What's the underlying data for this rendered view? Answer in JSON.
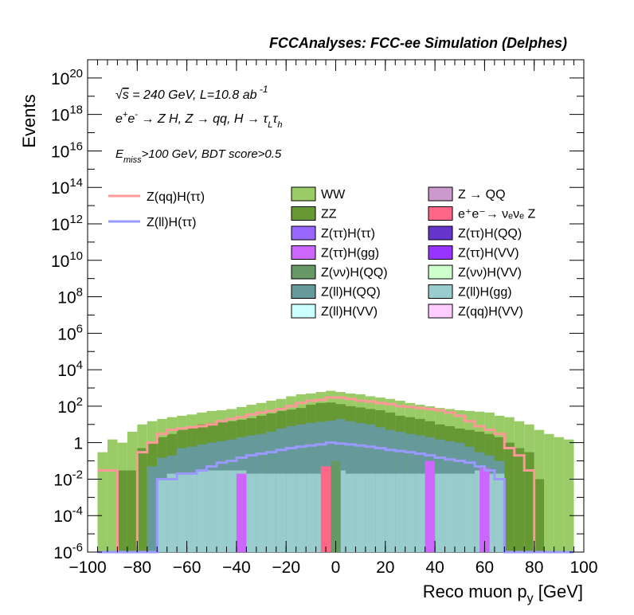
{
  "header": "FCCAnalyses: FCC-ee Simulation (Delphes)",
  "annotations": {
    "line1": "√s = 240 GeV, L=10.8 ab ⁻¹",
    "line2": "e⁺e⁻ → Z H, Z → qq, H → τ_L τ_h",
    "line3": "E_miss>100 GeV, BDT score>0.5"
  },
  "colors": {
    "WW": "#99cc66",
    "ZZ": "#669933",
    "Z_QQ": "#cc99cc",
    "eevvZ": "#ff6688",
    "tautau_tautau": "#9966ff",
    "tautau_QQ": "#6633cc",
    "tautau_gg": "#cc66ff",
    "tautau_VV": "#9933ff",
    "vv_QQ": "#669966",
    "vv_VV": "#ccffcc",
    "ll_QQ": "#669999",
    "ll_gg": "#99cccc",
    "ll_VV": "#ccffff",
    "qq_VV": "#ffccff",
    "sig_qq": "#ff9999",
    "sig_ll": "#9999ff"
  },
  "chart_data": {
    "type": "area",
    "title": "FCCAnalyses: FCC-ee Simulation (Delphes)",
    "xlabel": "Reco muon p_y [GeV]",
    "ylabel": "Events",
    "xlim": [
      -100,
      100
    ],
    "ylim": [
      1e-06,
      1e+21
    ],
    "yscale": "log",
    "stacked": true,
    "bin_width": 4,
    "x_ticks": [
      "−100",
      "−80",
      "−60",
      "−40",
      "−20",
      "0",
      "20",
      "40",
      "60",
      "80",
      "100"
    ],
    "y_ticks": [
      {
        "base": "1",
        "exp": ""
      },
      {
        "base": "10",
        "exp": "2"
      },
      {
        "base": "10",
        "exp": "4"
      },
      {
        "base": "10",
        "exp": "6"
      },
      {
        "base": "10",
        "exp": "8"
      },
      {
        "base": "10",
        "exp": "10"
      },
      {
        "base": "10",
        "exp": "12"
      },
      {
        "base": "10",
        "exp": "14"
      },
      {
        "base": "10",
        "exp": "16"
      },
      {
        "base": "10",
        "exp": "18"
      },
      {
        "base": "10",
        "exp": "20"
      },
      {
        "base": "10",
        "exp": "-2"
      },
      {
        "base": "10",
        "exp": "-4"
      },
      {
        "base": "10",
        "exp": "-6"
      }
    ],
    "legend": {
      "signals": [
        {
          "label": "Z(qq)H(ττ)",
          "color": "#ff9999"
        },
        {
          "label": "Z(ll)H(ττ)",
          "color": "#9999ff"
        }
      ],
      "backgrounds": [
        {
          "label": "WW",
          "color": "#99cc66"
        },
        {
          "label": "Z → QQ",
          "color": "#cc99cc"
        },
        {
          "label": "ZZ",
          "color": "#669933"
        },
        {
          "label": "e⁺e⁻→ νₑνₑ Z",
          "color": "#ff6688"
        },
        {
          "label": "Z(ττ)H(ττ)",
          "color": "#9966ff"
        },
        {
          "label": "Z(ττ)H(QQ)",
          "color": "#6633cc"
        },
        {
          "label": "Z(ττ)H(gg)",
          "color": "#cc66ff"
        },
        {
          "label": "Z(ττ)H(VV)",
          "color": "#9933ff"
        },
        {
          "label": "Z(νν)H(QQ)",
          "color": "#669966"
        },
        {
          "label": "Z(νν)H(VV)",
          "color": "#ccffcc"
        },
        {
          "label": "Z(ll)H(QQ)",
          "color": "#669999"
        },
        {
          "label": "Z(ll)H(gg)",
          "color": "#99cccc"
        },
        {
          "label": "Z(ll)H(VV)",
          "color": "#ccffff"
        },
        {
          "label": "Z(qq)H(VV)",
          "color": "#ffccff"
        }
      ]
    },
    "stack_totals": {
      "x": [
        -94,
        -90,
        -86,
        -82,
        -78,
        -74,
        -70,
        -66,
        -62,
        -58,
        -54,
        -50,
        -46,
        -42,
        -38,
        -34,
        -30,
        -26,
        -22,
        -18,
        -14,
        -10,
        -6,
        -2,
        2,
        6,
        10,
        14,
        18,
        22,
        26,
        30,
        34,
        38,
        42,
        46,
        50,
        54,
        58,
        62,
        66,
        70,
        74,
        78,
        82,
        86,
        90,
        94
      ],
      "WW": [
        0.3,
        1.5,
        1,
        4,
        10,
        15,
        20,
        25,
        30,
        35,
        45,
        55,
        60,
        70,
        90,
        120,
        150,
        200,
        250,
        350,
        450,
        500,
        600,
        700,
        600,
        500,
        450,
        350,
        300,
        250,
        200,
        150,
        120,
        100,
        80,
        70,
        60,
        55,
        50,
        45,
        30,
        25,
        15,
        10,
        5,
        3,
        2,
        1.5
      ],
      "ZZ": [
        0,
        0,
        0.03,
        0.03,
        0.5,
        1,
        2,
        3,
        5,
        7,
        10,
        12,
        14,
        15,
        18,
        22,
        30,
        40,
        55,
        65,
        80,
        120,
        150,
        160,
        130,
        100,
        85,
        70,
        60,
        45,
        30,
        25,
        20,
        15,
        10,
        8,
        6,
        5,
        4,
        3,
        2,
        1,
        0.5,
        0.3,
        0.01,
        0,
        0,
        0
      ],
      "BG_misc": [
        0,
        0,
        0,
        0,
        0,
        0.05,
        0.15,
        0.2,
        0.5,
        0.6,
        0.8,
        1,
        1.2,
        1.5,
        2,
        2.5,
        3,
        4,
        6,
        8,
        10,
        12,
        14,
        16,
        20,
        15,
        12,
        10,
        7,
        5,
        4,
        3,
        2.5,
        2,
        1.5,
        1.2,
        1,
        0.6,
        0.3,
        0.2,
        0.1,
        0,
        0,
        0,
        0,
        0,
        0,
        0
      ],
      "LL_gg": [
        0,
        0,
        0,
        0,
        0,
        0,
        0.01,
        0.02,
        0.02,
        0.02,
        0.03,
        0.03,
        0.03,
        0.03,
        0.03,
        0.02,
        0.02,
        0.02,
        0.02,
        0.02,
        0.02,
        0.02,
        0.02,
        0.02,
        0.03,
        0.02,
        0.02,
        0.02,
        0.02,
        0.02,
        0.02,
        0.02,
        0.02,
        0.02,
        0.02,
        0.02,
        0.02,
        0.02,
        0.03,
        0.02,
        0.02,
        0,
        0,
        0,
        0,
        0,
        0,
        0
      ]
    },
    "signal_qq_tautau": [
      0.03,
      0.03,
      0,
      0,
      0.3,
      1,
      3,
      5,
      6,
      7,
      8,
      10,
      15,
      20,
      25,
      35,
      45,
      55,
      70,
      100,
      150,
      200,
      220,
      300,
      300,
      250,
      200,
      180,
      150,
      130,
      100,
      90,
      80,
      70,
      60,
      45,
      30,
      15,
      8,
      5,
      3,
      0.5,
      0.2,
      0.03,
      0,
      0,
      0,
      0
    ],
    "signal_ll_tautau": [
      0,
      0,
      0,
      0,
      0,
      0,
      0.01,
      0.01,
      0.02,
      0.02,
      0.03,
      0.05,
      0.08,
      0.1,
      0.15,
      0.2,
      0.25,
      0.3,
      0.4,
      0.5,
      0.6,
      0.7,
      0.8,
      1,
      0.9,
      0.8,
      0.7,
      0.6,
      0.5,
      0.4,
      0.35,
      0.3,
      0.25,
      0.2,
      0.15,
      0.12,
      0.1,
      0.08,
      0.05,
      0.03,
      0.01,
      0,
      0,
      0,
      0,
      0,
      0,
      0
    ]
  }
}
